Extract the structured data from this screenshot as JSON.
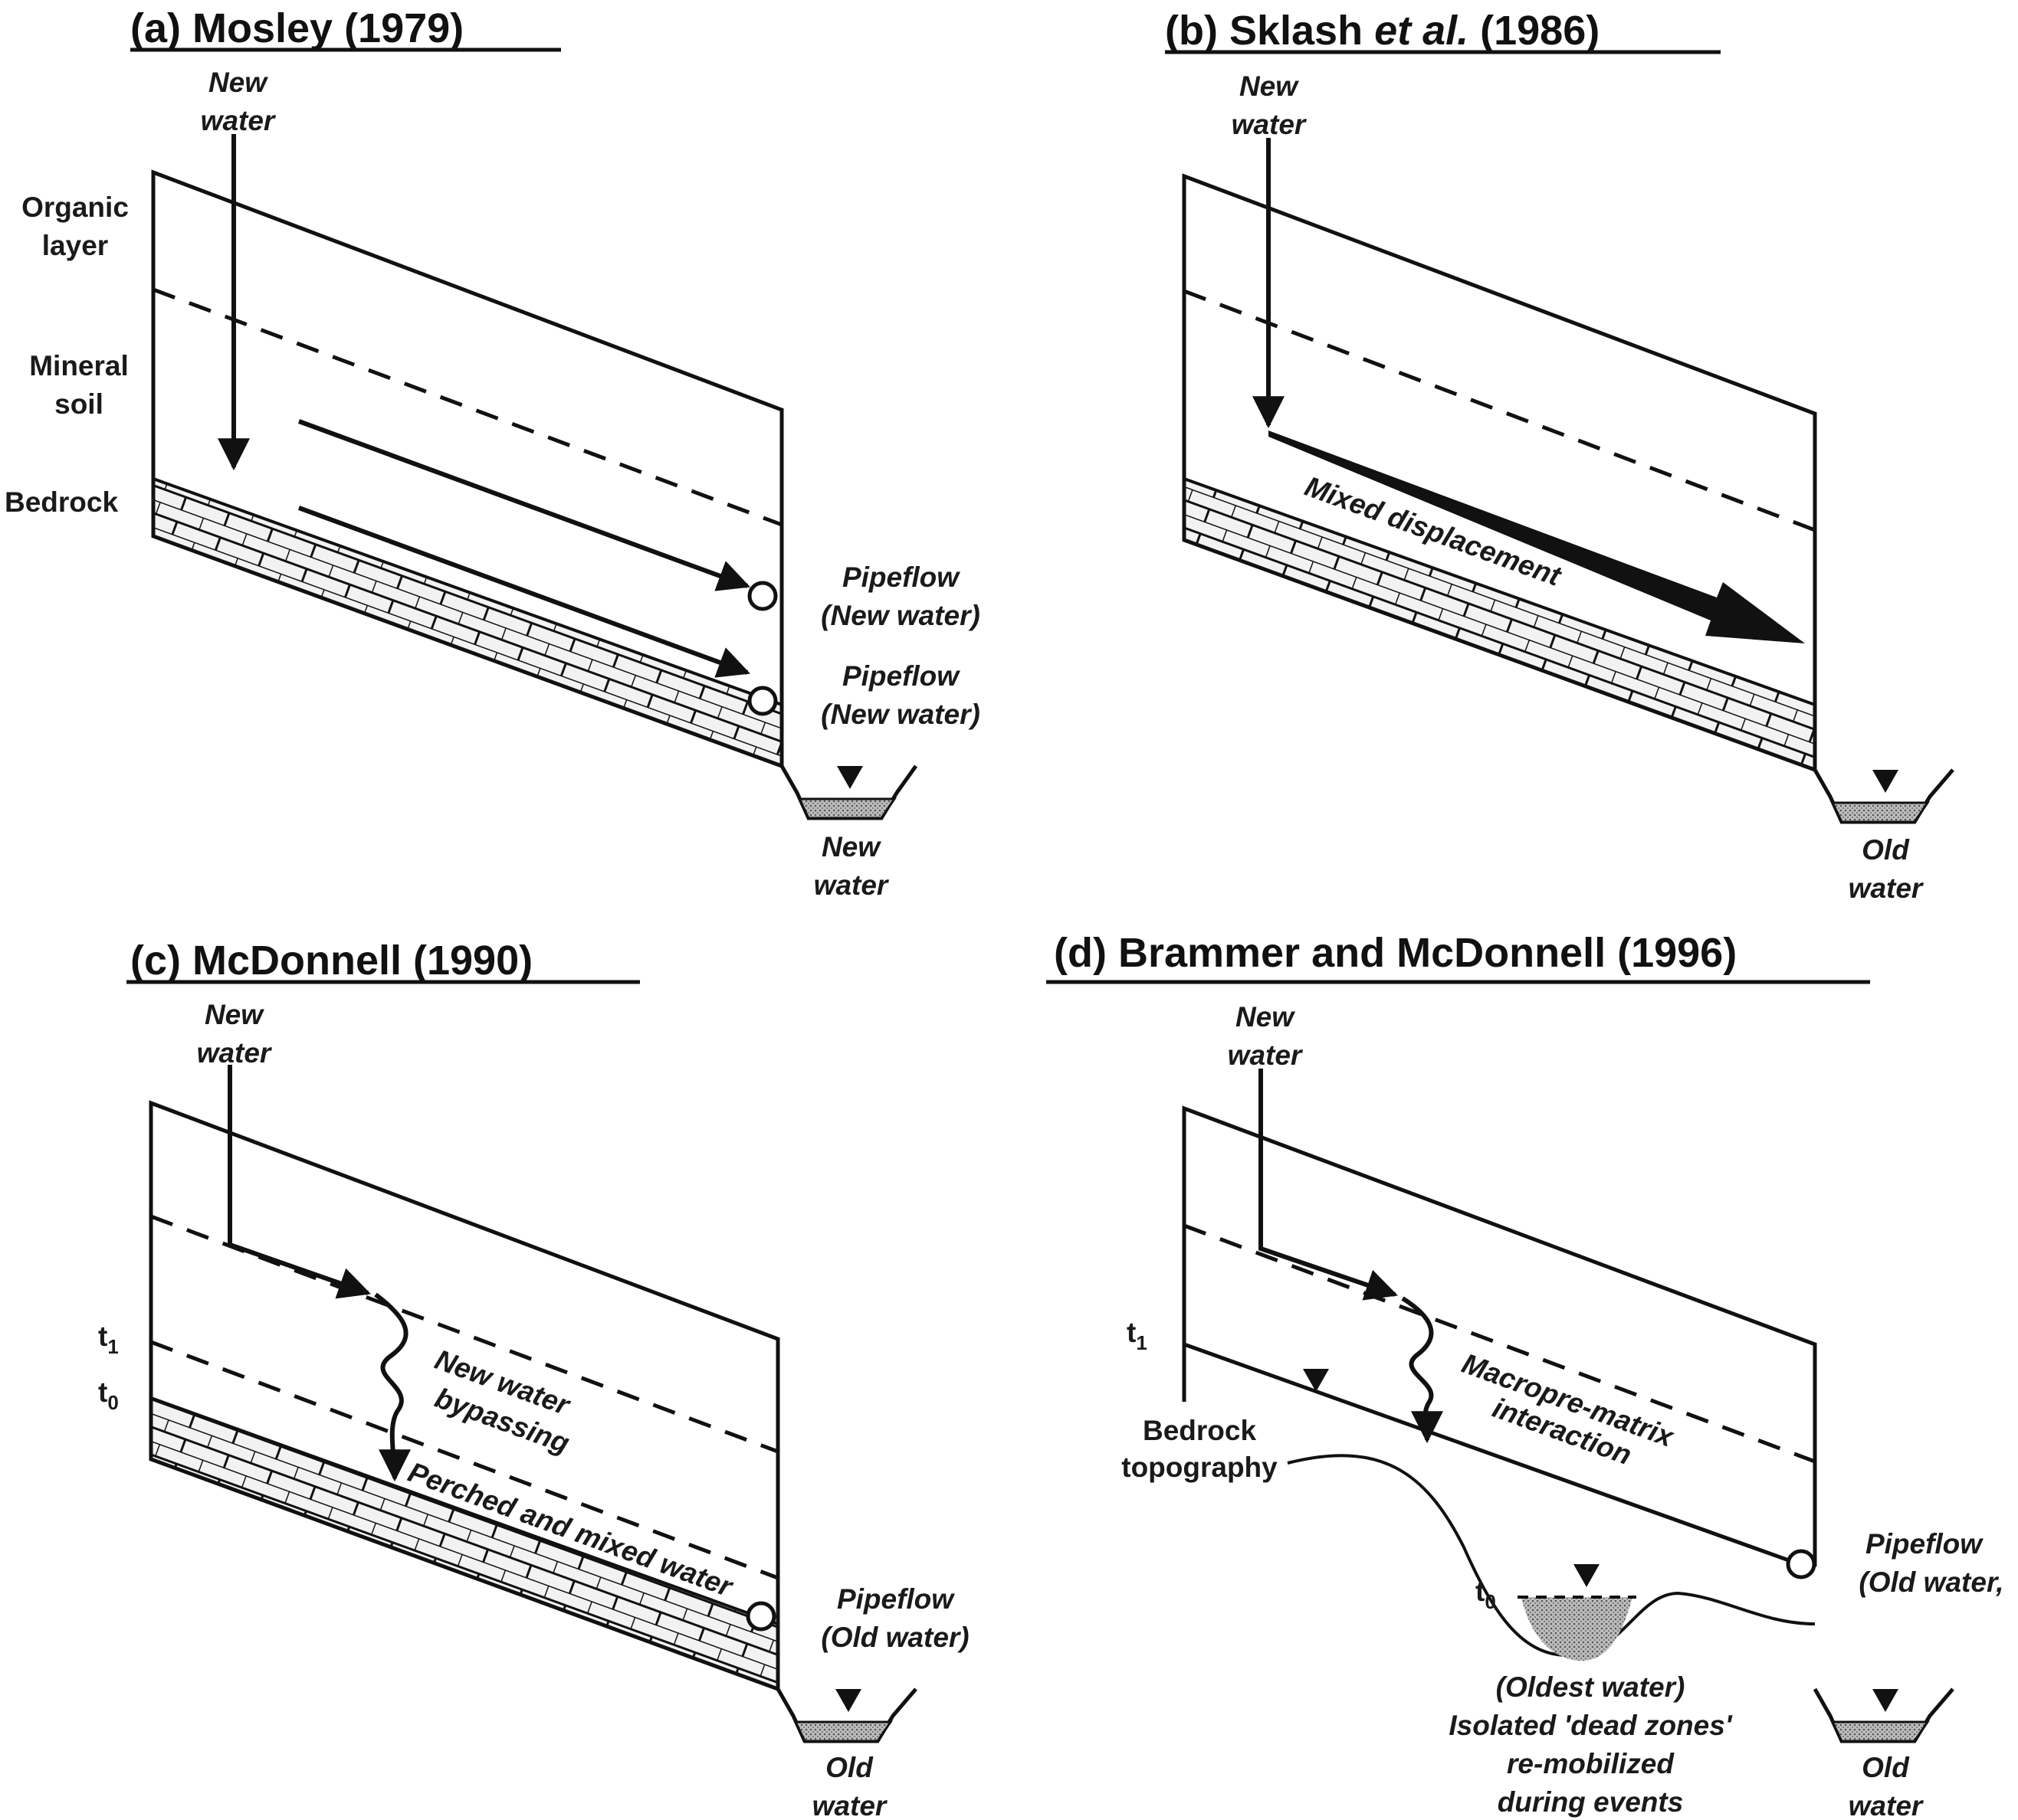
{
  "panels": {
    "a": {
      "title": "(a) Mosley (1979)",
      "new_water_line1": "New",
      "new_water_line2": "water",
      "organic_line1": "Organic",
      "organic_line2": "layer",
      "mineral_line1": "Mineral",
      "mineral_line2": "soil",
      "bedrock": "Bedrock",
      "pipe1_line1": "Pipeflow",
      "pipe1_line2": "(New water)",
      "pipe2_line1": "Pipeflow",
      "pipe2_line2": "(New water)",
      "stream_line1": "New",
      "stream_line2": "water"
    },
    "b": {
      "title_pre": "(b) Sklash ",
      "title_italic": "et al.",
      "title_post": " (1986)",
      "new_water_line1": "New",
      "new_water_line2": "water",
      "mixed": "Mixed displacement",
      "stream_line1": "Old",
      "stream_line2": "water"
    },
    "c": {
      "title": "(c) McDonnell (1990)",
      "new_water_line1": "New",
      "new_water_line2": "water",
      "t1": "t",
      "t1_sub": "1",
      "t0": "t",
      "t0_sub": "0",
      "bypass_line1": "New water",
      "bypass_line2": "bypassing",
      "perched": "Perched and mixed water",
      "pipe_line1": "Pipeflow",
      "pipe_line2": "(Old water)",
      "stream_line1": "Old",
      "stream_line2": "water"
    },
    "d": {
      "title": "(d) Brammer and McDonnell (1996)",
      "new_water_line1": "New",
      "new_water_line2": "water",
      "t1": "t",
      "t1_sub": "1",
      "t0": "t",
      "t0_sub": "0",
      "bedrock_topo_line1": "Bedrock",
      "bedrock_topo_line2": "topography",
      "macro_line1": "Macropre-matrix",
      "macro_line2": "interaction",
      "pipe_line1": "Pipeflow",
      "pipe_line2": "(Old water,",
      "oldest_line1": "(Oldest water)",
      "oldest_line2": "Isolated 'dead zones'",
      "oldest_line3": "re-mobilized",
      "oldest_line4": "during events",
      "stream_line1": "Old",
      "stream_line2": "water"
    }
  }
}
